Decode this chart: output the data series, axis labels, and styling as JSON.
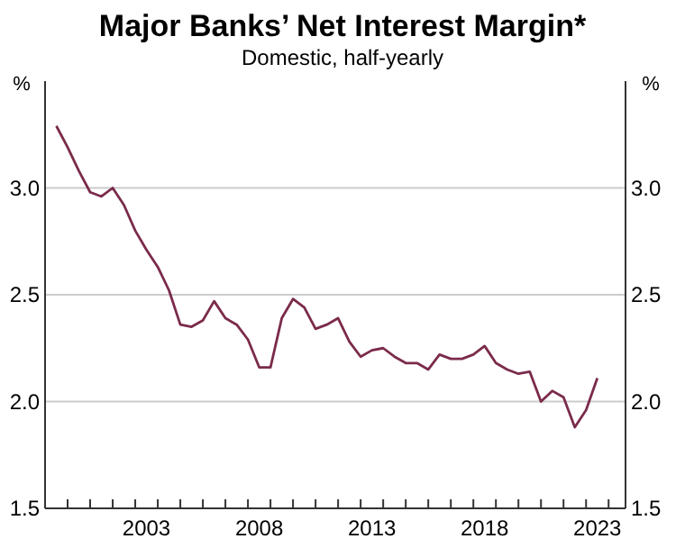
{
  "chart_data": {
    "type": "line",
    "title": "Major Banks’ Net Interest Margin*",
    "subtitle": "Domestic, half-yearly",
    "ylabel": "%",
    "y2label": "%",
    "series": [
      {
        "color": "#7b2b4b",
        "x": [
          1999.5,
          2000,
          2000.5,
          2001,
          2001.5,
          2002,
          2002.5,
          2003,
          2003.5,
          2004,
          2004.5,
          2005,
          2005.5,
          2006,
          2006.5,
          2007,
          2007.5,
          2008,
          2008.5,
          2009,
          2009.5,
          2010,
          2010.5,
          2011,
          2011.5,
          2012,
          2012.5,
          2013,
          2013.5,
          2014,
          2014.5,
          2015,
          2015.5,
          2016,
          2016.5,
          2017,
          2017.5,
          2018,
          2018.5,
          2019,
          2019.5,
          2020,
          2020.5,
          2021,
          2021.5,
          2022,
          2022.5,
          2023,
          2023.5
        ],
        "values": [
          3.29,
          3.19,
          3.08,
          2.98,
          2.96,
          3.0,
          2.92,
          2.8,
          2.71,
          2.63,
          2.52,
          2.36,
          2.35,
          2.38,
          2.47,
          2.39,
          2.36,
          2.29,
          2.16,
          2.16,
          2.39,
          2.48,
          2.44,
          2.34,
          2.36,
          2.39,
          2.28,
          2.21,
          2.24,
          2.25,
          2.21,
          2.18,
          2.18,
          2.15,
          2.22,
          2.2,
          2.2,
          2.22,
          2.26,
          2.18,
          2.15,
          2.13,
          2.14,
          2.0,
          2.05,
          2.02,
          1.88,
          1.96,
          2.11
        ]
      }
    ],
    "xlim": [
      1999,
      2024.75
    ],
    "xticks": [
      {
        "value": 1999,
        "label": null
      },
      {
        "value": 2000,
        "label": null
      },
      {
        "value": 2001,
        "label": null
      },
      {
        "value": 2002,
        "label": null
      },
      {
        "value": 2003,
        "label": null
      },
      {
        "value": 2003.5,
        "label": "2003"
      },
      {
        "value": 2004,
        "label": null
      },
      {
        "value": 2005,
        "label": null
      },
      {
        "value": 2006,
        "label": null
      },
      {
        "value": 2007,
        "label": null
      },
      {
        "value": 2008,
        "label": null
      },
      {
        "value": 2008.5,
        "label": "2008"
      },
      {
        "value": 2009,
        "label": null
      },
      {
        "value": 2010,
        "label": null
      },
      {
        "value": 2011,
        "label": null
      },
      {
        "value": 2012,
        "label": null
      },
      {
        "value": 2013,
        "label": null
      },
      {
        "value": 2013.5,
        "label": "2013"
      },
      {
        "value": 2014,
        "label": null
      },
      {
        "value": 2015,
        "label": null
      },
      {
        "value": 2016,
        "label": null
      },
      {
        "value": 2017,
        "label": null
      },
      {
        "value": 2018,
        "label": null
      },
      {
        "value": 2018.5,
        "label": "2018"
      },
      {
        "value": 2019,
        "label": null
      },
      {
        "value": 2020,
        "label": null
      },
      {
        "value": 2021,
        "label": null
      },
      {
        "value": 2022,
        "label": null
      },
      {
        "value": 2023,
        "label": null
      },
      {
        "value": 2023.5,
        "label": "2023"
      },
      {
        "value": 2024,
        "label": null
      }
    ],
    "ylim": [
      1.5,
      3.5
    ],
    "yticks": [
      1.5,
      {
        "value": 2,
        "label": "2.0"
      },
      2.5,
      {
        "value": 3,
        "label": "3.0"
      }
    ],
    "y2lim": [
      1.5,
      3.5
    ],
    "y2ticks": [
      1.5,
      {
        "value": 2,
        "label": "2.0"
      },
      2.5,
      {
        "value": 3,
        "label": "3.0"
      }
    ],
    "grid": "y",
    "marker": "none",
    "line_style": "solid"
  }
}
